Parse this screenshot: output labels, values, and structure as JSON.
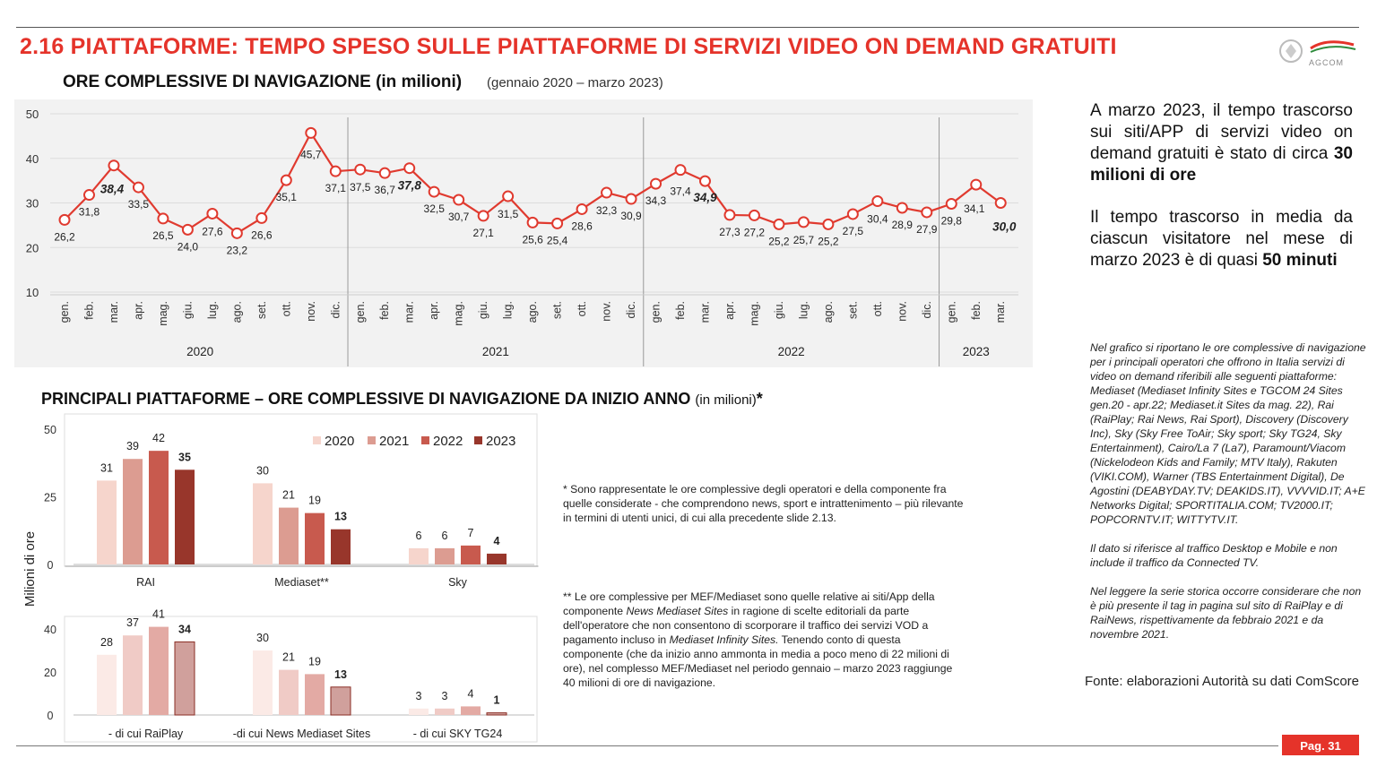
{
  "header": {
    "title": "2.16 PIATTAFORME: TEMPO SPESO SULLE PIATTAFORME DI SERVIZI VIDEO ON DEMAND GRATUITI",
    "logo_text": "AGCOM"
  },
  "line_section": {
    "title": "ORE COMPLESSIVE DI NAVIGAZIONE (in milioni)",
    "period": "(gennaio 2020 – marzo 2023)"
  },
  "bar_section": {
    "title": "PRINCIPALI PIATTAFORME – ORE COMPLESSIVE DI NAVIGAZIONE DA INIZIO ANNO",
    "units": "(in milioni)",
    "star": "*"
  },
  "chart_data": [
    {
      "type": "line",
      "x": [
        "gen.",
        "feb.",
        "mar.",
        "apr.",
        "mag.",
        "giu.",
        "lug.",
        "ago.",
        "set.",
        "ott.",
        "nov.",
        "dic.",
        "gen.",
        "feb.",
        "mar.",
        "apr.",
        "mag.",
        "giu.",
        "lug.",
        "ago.",
        "set.",
        "ott.",
        "nov.",
        "dic.",
        "gen.",
        "feb.",
        "mar.",
        "apr.",
        "mag.",
        "giu.",
        "lug.",
        "ago.",
        "set.",
        "ott.",
        "nov.",
        "dic.",
        "gen.",
        "feb.",
        "mar."
      ],
      "years": [
        {
          "label": "2020",
          "start": 0,
          "end": 11
        },
        {
          "label": "2021",
          "start": 12,
          "end": 23
        },
        {
          "label": "2022",
          "start": 24,
          "end": 35
        },
        {
          "label": "2023",
          "start": 36,
          "end": 38
        }
      ],
      "values": [
        26.2,
        31.8,
        38.4,
        33.5,
        26.5,
        24.0,
        27.6,
        23.2,
        26.6,
        35.1,
        45.7,
        37.1,
        37.5,
        36.7,
        37.8,
        32.5,
        30.7,
        27.1,
        31.5,
        25.6,
        25.4,
        28.6,
        32.3,
        30.9,
        34.3,
        37.4,
        34.9,
        27.3,
        27.2,
        25.2,
        25.7,
        25.2,
        27.5,
        30.4,
        28.9,
        27.9,
        29.8,
        34.1,
        30.0
      ],
      "labels": [
        "26,2",
        "31,8",
        "38,4",
        "33,5",
        "26,5",
        "24,0",
        "27,6",
        "23,2",
        "26,6",
        "35,1",
        "45,7",
        "37,1",
        "37,5",
        "36,7",
        "37,8",
        "32,5",
        "30,7",
        "27,1",
        "31,5",
        "25,6",
        "25,4",
        "28,6",
        "32,3",
        "30,9",
        "34,3",
        "37,4",
        "34,9",
        "27,3",
        "27,2",
        "25,2",
        "25,7",
        "25,2",
        "27,5",
        "30,4",
        "28,9",
        "27,9",
        "29,8",
        "34,1",
        "30,0"
      ],
      "bold_labels": [
        2,
        14,
        26,
        38
      ],
      "y_ticks": [
        "50",
        "40",
        "30",
        "20",
        "10"
      ],
      "ylim": [
        10,
        50
      ],
      "color": "#e03a2f"
    },
    {
      "type": "bar",
      "ylabel": "Milioni di ore",
      "legend": [
        "2020",
        "2021",
        "2022",
        "2023"
      ],
      "colors_top": [
        "#f6d5cc",
        "#dc9c91",
        "#c85a4e",
        "#98362b"
      ],
      "colors_bottom": [
        "#fbeae6",
        "#f0cbc6",
        "#e3aaa4",
        "#d0a09c"
      ],
      "top": {
        "y_ticks": [
          "50",
          "25",
          "0"
        ],
        "ylim": [
          0,
          50
        ],
        "groups": [
          {
            "category": "RAI",
            "values": [
              31,
              39,
              42,
              35
            ],
            "labels": [
              "31",
              "39",
              "42",
              "35"
            ]
          },
          {
            "category": "Mediaset**",
            "values": [
              30,
              21,
              19,
              13
            ],
            "labels": [
              "30",
              "21",
              "19",
              "13"
            ]
          },
          {
            "category": "Sky",
            "values": [
              6,
              6,
              7,
              4
            ],
            "labels": [
              "6",
              "6",
              "7",
              "4"
            ]
          }
        ]
      },
      "bottom": {
        "y_ticks": [
          "40",
          "20",
          "0"
        ],
        "ylim": [
          0,
          45
        ],
        "groups": [
          {
            "category": "- di cui RaiPlay",
            "values": [
              28,
              37,
              41,
              34
            ],
            "labels": [
              "28",
              "37",
              "41",
              "34"
            ]
          },
          {
            "category": "-di cui News Mediaset Sites",
            "values": [
              30,
              21,
              19,
              13
            ],
            "labels": [
              "30",
              "21",
              "19",
              "13"
            ]
          },
          {
            "category": "- di cui SKY TG24",
            "values": [
              3,
              3,
              4,
              1
            ],
            "labels": [
              "3",
              "3",
              "4",
              "1"
            ]
          }
        ]
      }
    }
  ],
  "right": {
    "p1a": "A marzo 2023, il tempo trascorso sui siti/APP di servizi video on demand gratuiti è stato di circa ",
    "p1b": "30 milioni di ore",
    "p2a": "Il tempo trascorso in media da ciascun visitatore nel mese di marzo 2023 è di quasi ",
    "p2b": "50 minuti",
    "note1": "Nel grafico si riportano le ore complessive di navigazione per i principali operatori che offrono in Italia servizi di video on demand riferibili alle seguenti piattaforme: Mediaset (Mediaset Infinity Sites e TGCOM 24 Sites gen.20 - apr.22; Mediaset.it Sites da mag. 22), Rai (RaiPlay; Rai News, Rai Sport), Discovery (Discovery Inc), Sky (Sky Free ToAir; Sky sport; Sky TG24, Sky Entertainment), Cairo/La 7 (La7), Paramount/Viacom (Nickelodeon Kids and Family; MTV Italy), Rakuten (VIKI.COM), Warner (TBS Entertainment Digital), De Agostini (DEABYDAY.TV; DEAKIDS.IT), VVVVID.IT; A+E Networks Digital; SPORTITALIA.COM; TV2000.IT; POPCORNTV.IT; WITTYTV.IT.",
    "note2": "Il dato si riferisce al traffico Desktop e Mobile e non include il traffico da Connected TV.",
    "note3": "Nel leggere la serie storica occorre considerare che non è più presente il tag in pagina sul sito di RaiPlay e di RaiNews, rispettivamente da febbraio 2021 e da novembre 2021.",
    "source": "Fonte: elaborazioni Autorità su dati ComScore"
  },
  "footnotes": {
    "fn1": "* Sono rappresentate le ore complessive degli operatori e della componente fra quelle considerate - che comprendono news, sport e intrattenimento – più rilevante in termini di utenti unici, di cui alla precedente slide 2.13.",
    "fn2a": "** Le ore complessive per MEF/Mediaset sono quelle relative ai siti/App della componente ",
    "fn2b": "News Mediaset Sites",
    "fn2c": " in ragione di scelte editoriali da parte dell'operatore che non consentono di scorporare il traffico dei servizi VOD a pagamento incluso in ",
    "fn2d": "Mediaset Infinity Sites.",
    "fn2e": " Tenendo conto di questa componente (che da inizio anno ammonta in media a poco meno di 22 milioni di ore), nel complesso MEF/Mediaset nel periodo gennaio – marzo 2023 raggiunge 40 milioni di ore di navigazione."
  },
  "page": {
    "label": "Pag. 31"
  }
}
